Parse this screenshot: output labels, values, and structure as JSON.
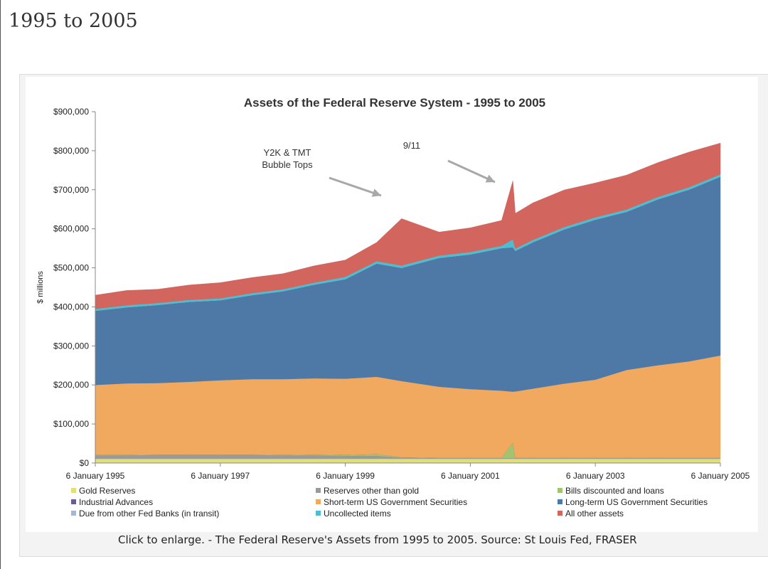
{
  "page": {
    "heading": "1995 to 2005",
    "caption": "Click to enlarge. - The Federal Reserve's Assets from 1995 to 2005. Source: St Louis Fed, FRASER"
  },
  "chart_data": {
    "type": "area",
    "stacked": true,
    "title": "Assets of the Federal Reserve System - 1995 to 2005",
    "xlabel": "",
    "ylabel": "$ millions",
    "xlim": [
      1995.0,
      2005.0
    ],
    "ylim": [
      0,
      900000
    ],
    "yticks": [
      0,
      100000,
      200000,
      300000,
      400000,
      500000,
      600000,
      700000,
      800000,
      900000
    ],
    "ytick_labels": [
      "$0",
      "$100,000",
      "$200,000",
      "$300,000",
      "$400,000",
      "$500,000",
      "$600,000",
      "$700,000",
      "$800,000",
      "$900,000"
    ],
    "xticks": [
      1995.0,
      1997.0,
      1999.0,
      2001.0,
      2003.0,
      2005.0
    ],
    "xtick_labels": [
      "6 January 1995",
      "6 January 1997",
      "6 January 1999",
      "6 January 2001",
      "6 January 2003",
      "6 January 2005"
    ],
    "grid": false,
    "legend_position": "bottom",
    "x": [
      1995.0,
      1995.5,
      1996.0,
      1996.5,
      1997.0,
      1997.5,
      1998.0,
      1998.5,
      1999.0,
      1999.5,
      1999.9,
      2000.5,
      2001.0,
      2001.5,
      2001.68,
      2001.72,
      2002.0,
      2002.5,
      2003.0,
      2003.5,
      2004.0,
      2004.5,
      2005.0
    ],
    "series": [
      {
        "name": "Gold Reserves",
        "color": "#e0e07a",
        "values": [
          11000,
          11000,
          11000,
          11000,
          11000,
          11000,
          11000,
          11000,
          11000,
          11000,
          11000,
          11000,
          11000,
          11000,
          11000,
          11000,
          11000,
          11000,
          11000,
          11000,
          11000,
          11000,
          11000
        ]
      },
      {
        "name": "Reserves other than gold",
        "color": "#9a9a9a",
        "values": [
          9000,
          9000,
          10000,
          10000,
          10000,
          10000,
          9000,
          9000,
          8000,
          8000,
          3000,
          2000,
          2000,
          2000,
          2000,
          2000,
          2000,
          2000,
          2000,
          2000,
          2000,
          2000,
          2000
        ]
      },
      {
        "name": "Bills discounted and loans",
        "color": "#a3c46f",
        "values": [
          1000,
          1000,
          1000,
          1000,
          1000,
          1000,
          1000,
          2000,
          2000,
          4000,
          1000,
          500,
          500,
          500,
          40000,
          500,
          500,
          500,
          500,
          500,
          500,
          500,
          500
        ]
      },
      {
        "name": "Industrial Advances",
        "color": "#6e5b92",
        "values": [
          0,
          0,
          0,
          0,
          0,
          0,
          0,
          0,
          0,
          0,
          0,
          0,
          0,
          0,
          0,
          0,
          0,
          0,
          0,
          0,
          0,
          0,
          0
        ]
      },
      {
        "name": "Short-term US Government Securities",
        "color": "#f0a95e",
        "values": [
          179000,
          183000,
          183000,
          186000,
          190000,
          193000,
          194000,
          195000,
          195000,
          198000,
          195000,
          182000,
          176000,
          172000,
          130000,
          170000,
          177000,
          190000,
          200000,
          225000,
          237000,
          247000,
          262000
        ]
      },
      {
        "name": "Long-term US Government Securities",
        "color": "#4e79a6",
        "values": [
          190000,
          195000,
          200000,
          205000,
          205000,
          215000,
          225000,
          240000,
          255000,
          290000,
          290000,
          330000,
          345000,
          365000,
          370000,
          360000,
          375000,
          395000,
          410000,
          405000,
          425000,
          440000,
          458000
        ]
      },
      {
        "name": "Due from other Fed Banks (in transit)",
        "color": "#a8b6d3",
        "values": [
          0,
          0,
          0,
          0,
          0,
          0,
          0,
          0,
          0,
          0,
          0,
          0,
          0,
          0,
          0,
          0,
          0,
          0,
          0,
          0,
          0,
          0,
          0
        ]
      },
      {
        "name": "Uncollected items",
        "color": "#4ebdd0",
        "values": [
          5000,
          5000,
          5000,
          5000,
          5000,
          5000,
          5000,
          5000,
          6000,
          6000,
          6000,
          6000,
          6000,
          6000,
          20000,
          6000,
          6000,
          6000,
          6000,
          6000,
          6000,
          6000,
          6000
        ]
      },
      {
        "name": "All other assets",
        "color": "#d2655e",
        "values": [
          35000,
          38000,
          35000,
          38000,
          40000,
          40000,
          40000,
          43000,
          43000,
          48000,
          120000,
          60000,
          62000,
          65000,
          150000,
          90000,
          95000,
          95000,
          88000,
          88000,
          88000,
          90000,
          80000
        ]
      }
    ],
    "annotations": [
      {
        "lines": [
          "Y2K & TMT",
          "Bubble Tops"
        ],
        "x": 1999.9
      },
      {
        "lines": [
          "9/11"
        ],
        "x": 2001.7
      }
    ]
  }
}
